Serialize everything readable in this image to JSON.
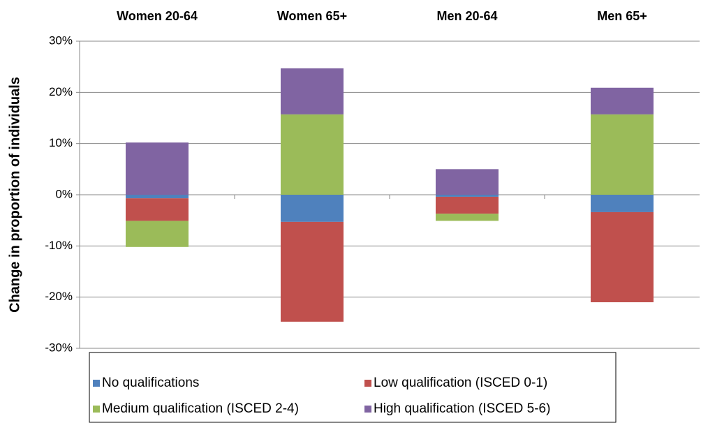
{
  "chart_data": {
    "type": "stacked-bar",
    "y_label": "Change in proportion of individuals",
    "categories": [
      "Women 20-64",
      "Women 65+",
      "Men 20-64",
      "Men 65+"
    ],
    "series": [
      {
        "name": "No qualifications",
        "color": "#4f81bd",
        "values": [
          -0.7,
          -5.3,
          -0.4,
          -3.4
        ]
      },
      {
        "name": "Low qualification (ISCED 0-1)",
        "color": "#c0504d",
        "values": [
          -4.4,
          -19.5,
          -3.3,
          -17.6
        ]
      },
      {
        "name": "Medium qualification (ISCED 2-4)",
        "color": "#9bbb59",
        "values": [
          -5.1,
          15.7,
          -1.4,
          15.7
        ]
      },
      {
        "name": "High qualification (ISCED 5-6)",
        "color": "#8064a2",
        "values": [
          10.2,
          9.0,
          5.0,
          5.2
        ]
      }
    ],
    "ylim": [
      -30,
      30
    ],
    "yticks": [
      {
        "value": -30,
        "label": "-30%"
      },
      {
        "value": -20,
        "label": "-20%"
      },
      {
        "value": -10,
        "label": "-10%"
      },
      {
        "value": 0,
        "label": "0%"
      },
      {
        "value": 10,
        "label": "10%"
      },
      {
        "value": 20,
        "label": "20%"
      },
      {
        "value": 30,
        "label": "30%"
      }
    ],
    "grid": true,
    "legend": "bottom"
  }
}
